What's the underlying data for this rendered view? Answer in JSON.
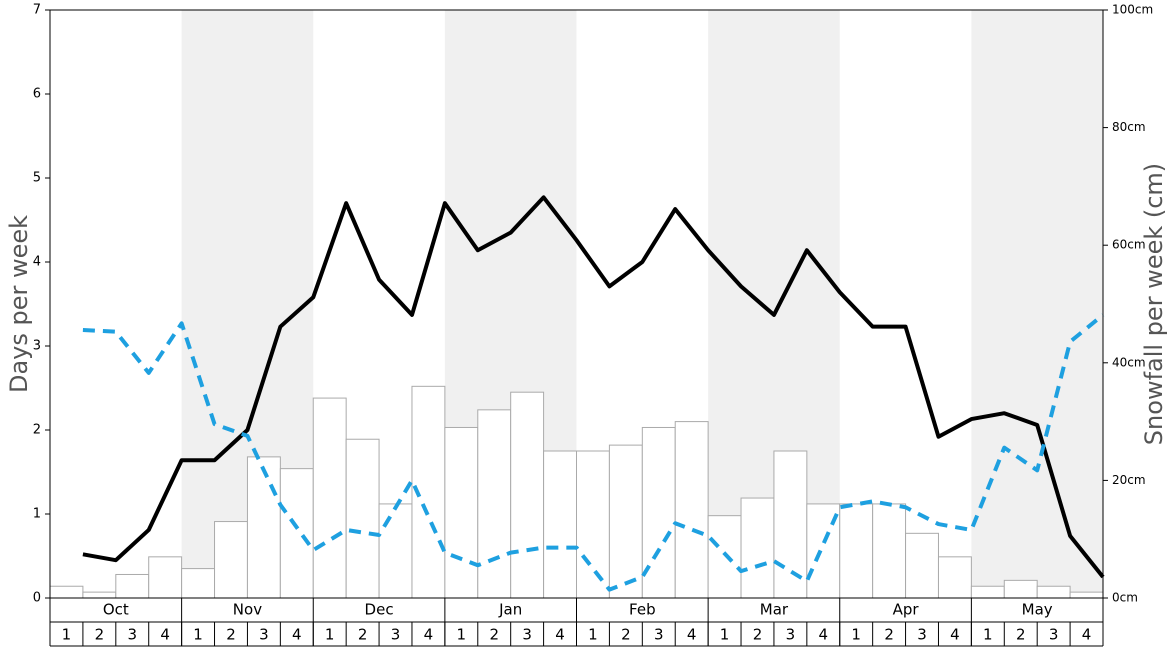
{
  "chart_data": {
    "type": "bar",
    "ylabel": "Days per week",
    "y2label": "Snowfall per week (cm)",
    "months": [
      "Oct",
      "Nov",
      "Dec",
      "Jan",
      "Feb",
      "Mar",
      "Apr",
      "May"
    ],
    "categories": [
      "1",
      "2",
      "3",
      "4",
      "1",
      "2",
      "3",
      "4",
      "1",
      "2",
      "3",
      "4",
      "1",
      "2",
      "3",
      "4",
      "1",
      "2",
      "3",
      "4",
      "1",
      "2",
      "3",
      "4",
      "1",
      "2",
      "3",
      "4",
      "1",
      "2",
      "3",
      "4"
    ],
    "series": [
      {
        "type": "bar",
        "axis": "y2",
        "color": "#ffffff",
        "edge": "#aaaaaa",
        "values": [
          2,
          1,
          4,
          7,
          5,
          13,
          24,
          22,
          34,
          27,
          16,
          36,
          29,
          32,
          35,
          25,
          25,
          26,
          29,
          30,
          14,
          17,
          25,
          16,
          16,
          16,
          11,
          7,
          2,
          3,
          2,
          1
        ]
      },
      {
        "type": "line",
        "color": "#000000",
        "values": [
          0.52,
          0.45,
          0.81,
          1.64,
          1.64,
          2.0,
          3.23,
          3.58,
          4.7,
          3.79,
          3.37,
          4.7,
          4.14,
          4.35,
          4.77,
          4.26,
          3.71,
          4.0,
          4.63,
          4.14,
          3.71,
          3.37,
          4.14,
          3.64,
          3.23,
          3.23,
          1.92,
          2.13,
          2.2,
          2.06,
          0.74,
          0.25
        ]
      },
      {
        "type": "line",
        "color": "#1ea0e0",
        "dashed": true,
        "values": [
          3.19,
          3.17,
          2.68,
          3.27,
          2.07,
          1.93,
          1.11,
          0.57,
          0.81,
          0.75,
          1.4,
          0.54,
          0.39,
          0.54,
          0.6,
          0.6,
          0.1,
          0.25,
          0.89,
          0.74,
          0.32,
          0.44,
          0.2,
          1.08,
          1.15,
          1.08,
          0.88,
          0.81,
          1.79,
          1.52,
          3.05,
          3.37
        ]
      }
    ],
    "ylim": [
      0,
      7
    ],
    "yticks": [
      0,
      1,
      2,
      3,
      4,
      5,
      6,
      7
    ],
    "y2lim": [
      0,
      100
    ],
    "y2ticks": [
      {
        "value": 0,
        "label": "0cm"
      },
      {
        "value": 20,
        "label": "20cm"
      },
      {
        "value": 40,
        "label": "40cm"
      },
      {
        "value": 60,
        "label": "60cm"
      },
      {
        "value": 80,
        "label": "80cm"
      },
      {
        "value": 100,
        "label": "100cm"
      }
    ],
    "shade": "#f0f0f0"
  }
}
